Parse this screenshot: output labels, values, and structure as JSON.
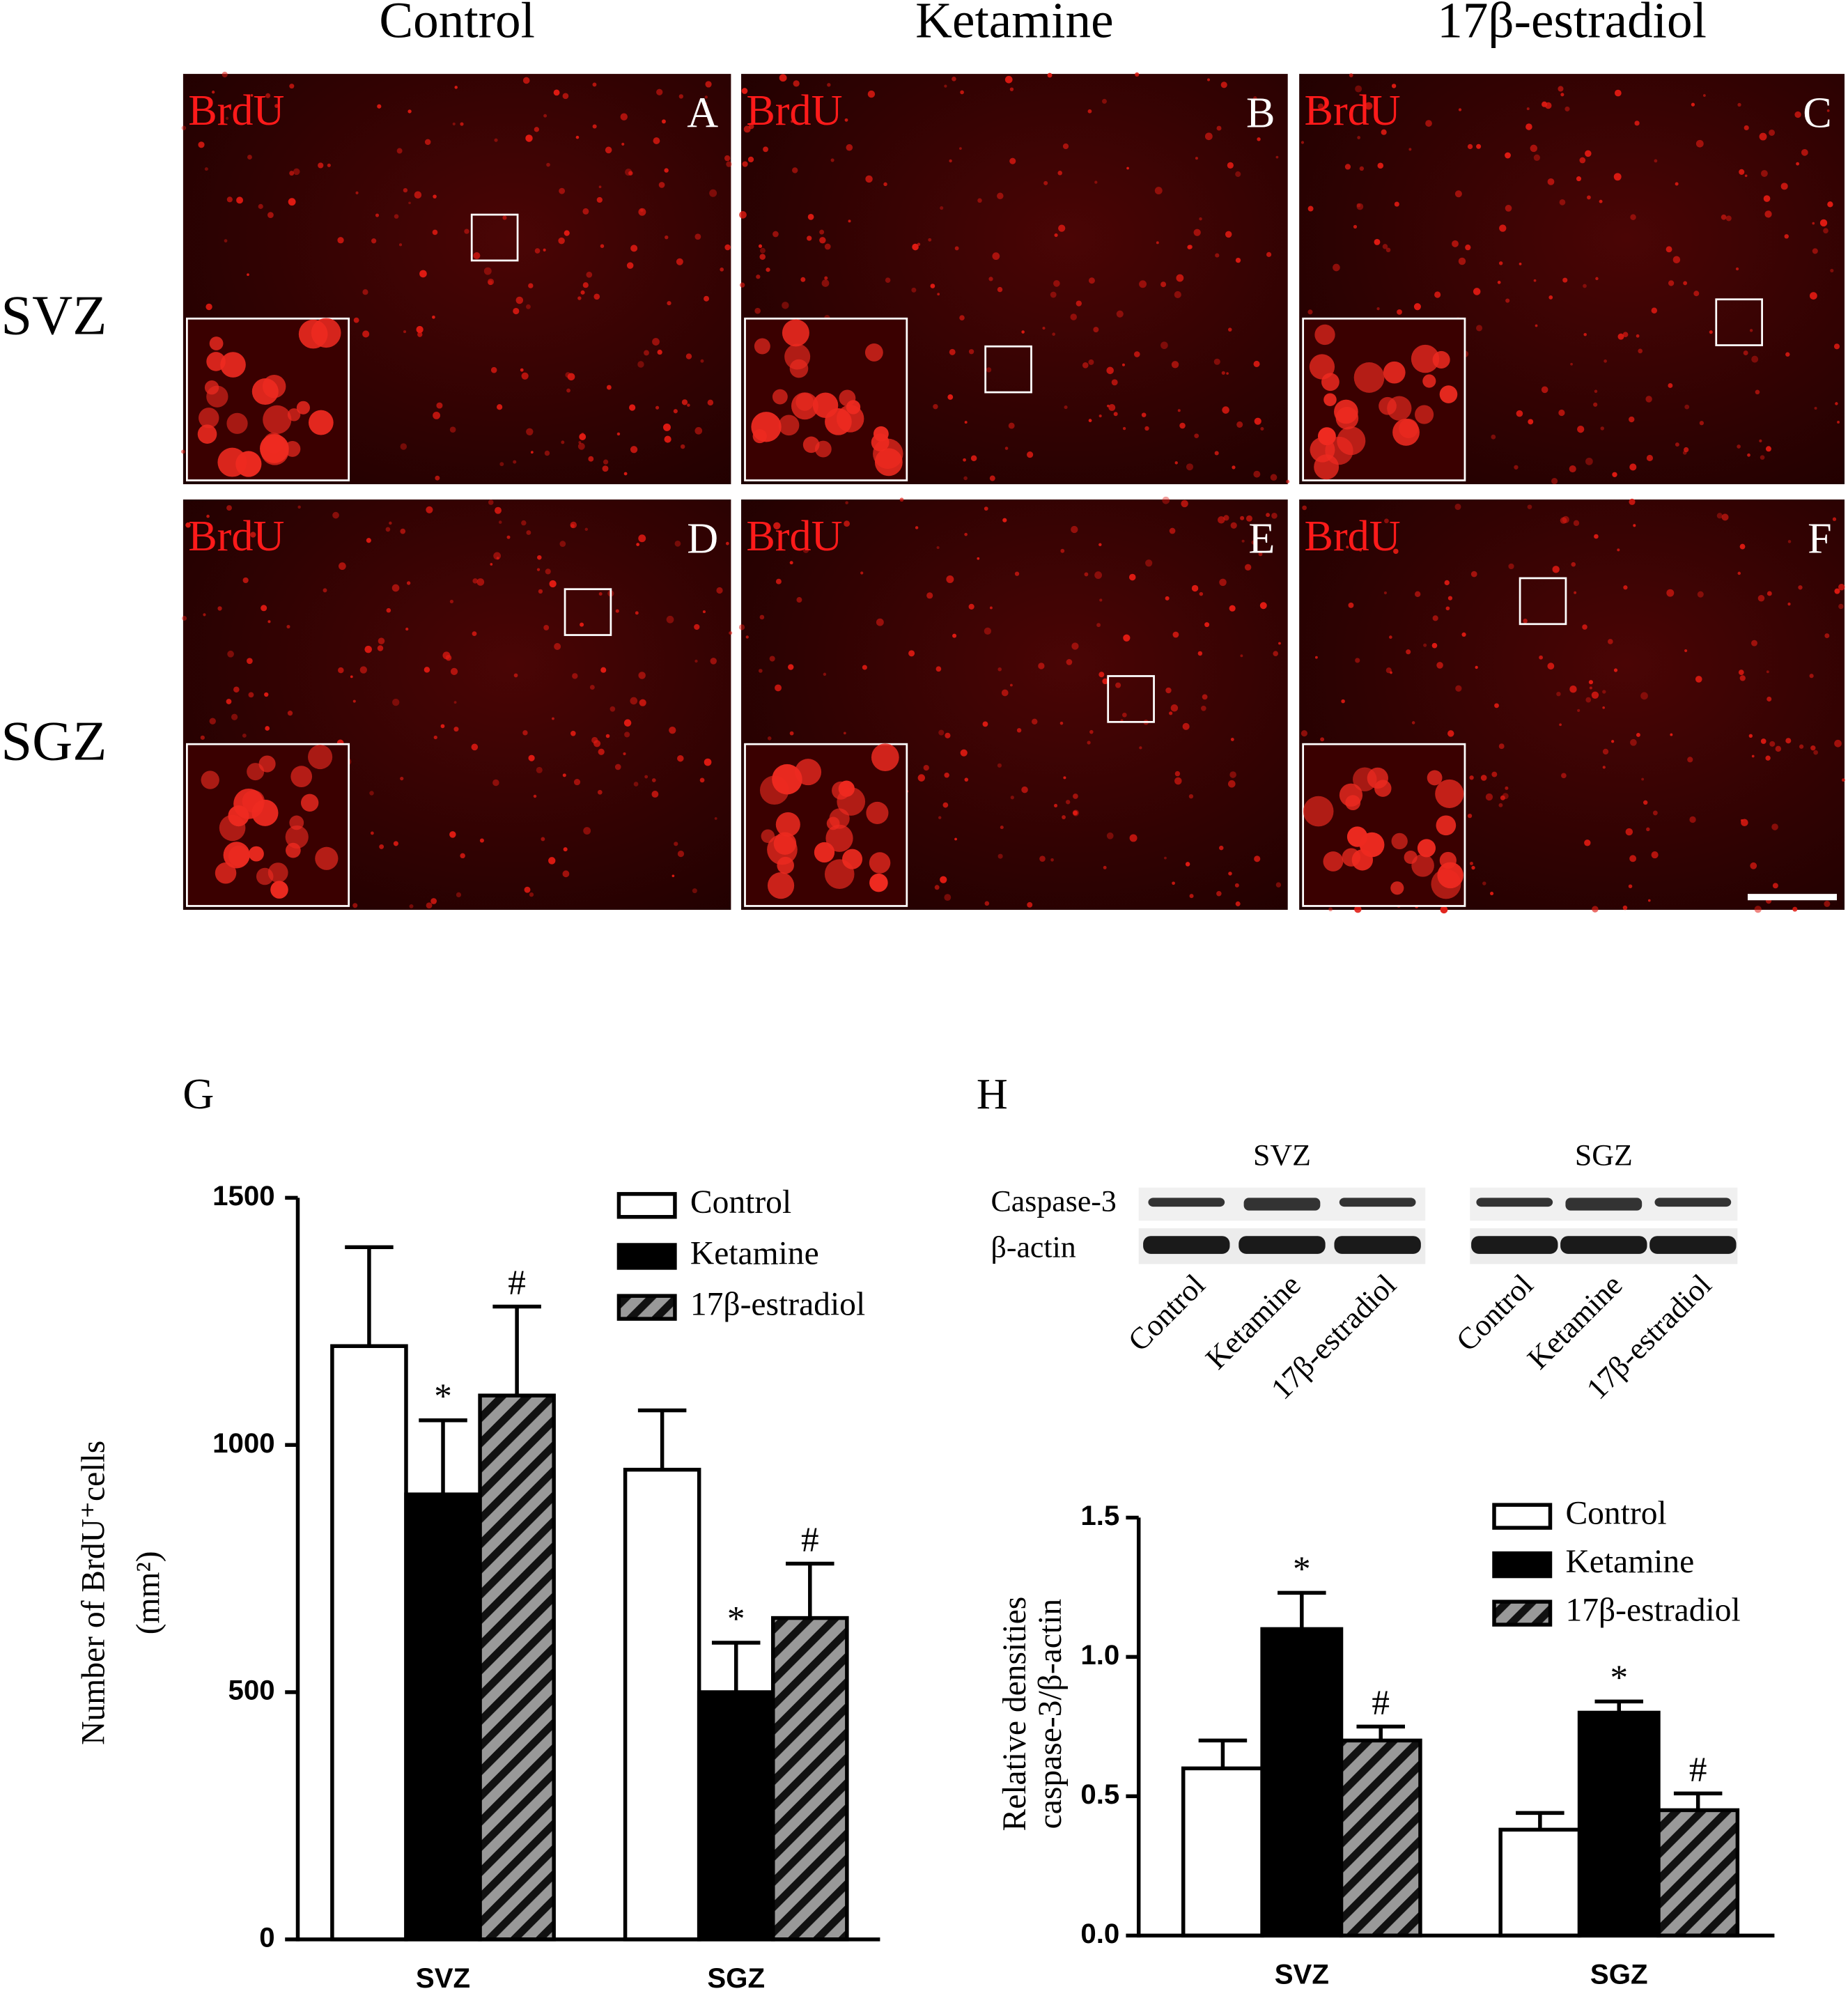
{
  "columns": [
    "Control",
    "Ketamine",
    "17β-estradiol"
  ],
  "rows": [
    "SVZ",
    "SGZ"
  ],
  "panels": [
    {
      "letter": "A",
      "stain": "BrdU"
    },
    {
      "letter": "B",
      "stain": "BrdU"
    },
    {
      "letter": "C",
      "stain": "BrdU"
    },
    {
      "letter": "D",
      "stain": "BrdU"
    },
    {
      "letter": "E",
      "stain": "BrdU"
    },
    {
      "letter": "F",
      "stain": "BrdU"
    }
  ],
  "blot": {
    "regions": [
      "SVZ",
      "SGZ"
    ],
    "proteins": [
      "Caspase-3",
      "β-actin"
    ],
    "lanes": [
      "Control",
      "Ketamine",
      "17β-estradiol"
    ]
  },
  "chart_data": [
    {
      "type": "bar",
      "panel": "G",
      "ylabel": [
        "Number of BrdU⁺cells",
        "(mm²)"
      ],
      "categories": [
        "SVZ",
        "SGZ"
      ],
      "series": [
        {
          "name": "Control",
          "color": "#ffffff",
          "values": [
            1200,
            950
          ],
          "errors": [
            200,
            120
          ]
        },
        {
          "name": "Ketamine",
          "color": "#000000",
          "values": [
            900,
            500
          ],
          "errors": [
            150,
            100
          ],
          "annotation": "*"
        },
        {
          "name": "17β-estradiol",
          "color": "#888888",
          "hatch": true,
          "values": [
            1100,
            650
          ],
          "errors": [
            180,
            110
          ],
          "annotation": "#"
        }
      ],
      "ylim": [
        0,
        1500
      ],
      "yticks": [
        0,
        500,
        1000,
        1500
      ]
    },
    {
      "type": "bar",
      "panel": "H",
      "ylabel": [
        "Relative densities",
        "caspase-3/β-actin"
      ],
      "categories": [
        "SVZ",
        "SGZ"
      ],
      "series": [
        {
          "name": "Control",
          "color": "#ffffff",
          "values": [
            0.6,
            0.38
          ],
          "errors": [
            0.1,
            0.06
          ]
        },
        {
          "name": "Ketamine",
          "color": "#000000",
          "values": [
            1.1,
            0.8
          ],
          "errors": [
            0.13,
            0.04
          ],
          "annotation": "*"
        },
        {
          "name": "17β-estradiol",
          "color": "#888888",
          "hatch": true,
          "values": [
            0.7,
            0.45
          ],
          "errors": [
            0.05,
            0.06
          ],
          "annotation": "#"
        }
      ],
      "ylim": [
        0,
        1.5
      ],
      "yticks": [
        {
          "value": 0,
          "label": "0.0"
        },
        0.5,
        {
          "value": 1,
          "label": "1.0"
        },
        1.5
      ]
    }
  ]
}
